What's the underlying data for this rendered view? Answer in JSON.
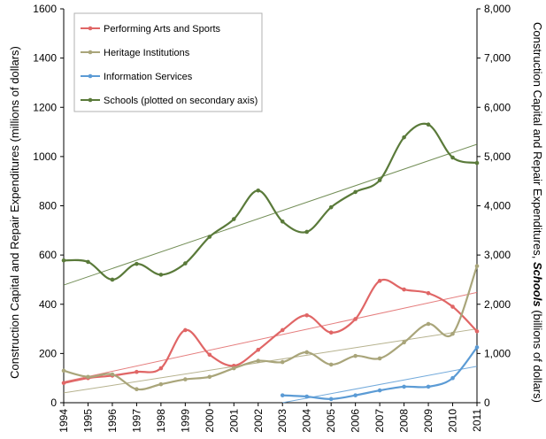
{
  "chart_data": {
    "type": "line",
    "x": [
      1994,
      1995,
      1996,
      1997,
      1998,
      1999,
      2000,
      2001,
      2002,
      2003,
      2004,
      2005,
      2006,
      2007,
      2008,
      2009,
      2010,
      2011
    ],
    "primary_axis": {
      "label": "Construction Capital and Repair Expenditures (millions of dollars)",
      "range": [
        0,
        1600
      ],
      "ticks": [
        "0",
        "200",
        "400",
        "600",
        "800",
        "1000",
        "1200",
        "1400",
        "1600"
      ]
    },
    "secondary_axis": {
      "label_parts": [
        "Construction Capital and Repair Expenditures, ",
        "Schools",
        " (billions of dollars)"
      ],
      "range": [
        0,
        8000
      ],
      "ticks": [
        "0",
        "1,000",
        "2,000",
        "3,000",
        "4,000",
        "5,000",
        "6,000",
        "7,000",
        "8,000"
      ]
    },
    "grid": false,
    "legend_position": "top-left",
    "series": [
      {
        "name": "Performing Arts and Sports",
        "color": "#e06666",
        "axis": "primary",
        "x": [
          1994,
          1995,
          1996,
          1997,
          1998,
          1999,
          2000,
          2001,
          2002,
          2003,
          2004,
          2005,
          2006,
          2007,
          2008,
          2009,
          2010,
          2011
        ],
        "values": [
          80,
          100,
          110,
          125,
          140,
          295,
          195,
          150,
          215,
          295,
          355,
          285,
          340,
          495,
          460,
          445,
          390,
          290
        ]
      },
      {
        "name": "Heritage Institutions",
        "color": "#a9a57a",
        "axis": "primary",
        "x": [
          1994,
          1995,
          1996,
          1997,
          1998,
          1999,
          2000,
          2001,
          2002,
          2003,
          2004,
          2005,
          2006,
          2007,
          2008,
          2009,
          2010,
          2011
        ],
        "values": [
          130,
          105,
          115,
          55,
          75,
          95,
          105,
          140,
          170,
          165,
          205,
          155,
          190,
          180,
          245,
          320,
          280,
          555
        ]
      },
      {
        "name": "Information Services",
        "color": "#5b9bd5",
        "axis": "primary",
        "x": [
          2003,
          2004,
          2005,
          2006,
          2007,
          2008,
          2009,
          2010,
          2011
        ],
        "values": [
          30,
          25,
          15,
          30,
          50,
          65,
          65,
          100,
          225
        ]
      },
      {
        "name": "Schools (plotted on secondary axis)",
        "color": "#5a7a3a",
        "axis": "secondary",
        "x": [
          1994,
          1995,
          1996,
          1997,
          1998,
          1999,
          2000,
          2001,
          2002,
          2003,
          2004,
          2005,
          2006,
          2007,
          2008,
          2009,
          2010,
          2011
        ],
        "values": [
          2890,
          2860,
          2500,
          2820,
          2600,
          2830,
          3370,
          3730,
          4310,
          3680,
          3470,
          3970,
          4280,
          4520,
          5390,
          5650,
          4980,
          4870
        ]
      }
    ],
    "trendlines": [
      {
        "series": "Performing Arts and Sports",
        "axis": "primary",
        "x": [
          1994,
          2011
        ],
        "values": [
          85,
          448
        ]
      },
      {
        "series": "Heritage Institutions",
        "axis": "primary",
        "x": [
          1994,
          2011
        ],
        "values": [
          40,
          300
        ]
      },
      {
        "series": "Information Services",
        "axis": "primary",
        "x": [
          2003,
          2011
        ],
        "values": [
          0,
          148
        ]
      },
      {
        "series": "Schools (plotted on secondary axis)",
        "axis": "secondary",
        "x": [
          1994,
          2011
        ],
        "values": [
          2390,
          5250
        ]
      }
    ]
  }
}
